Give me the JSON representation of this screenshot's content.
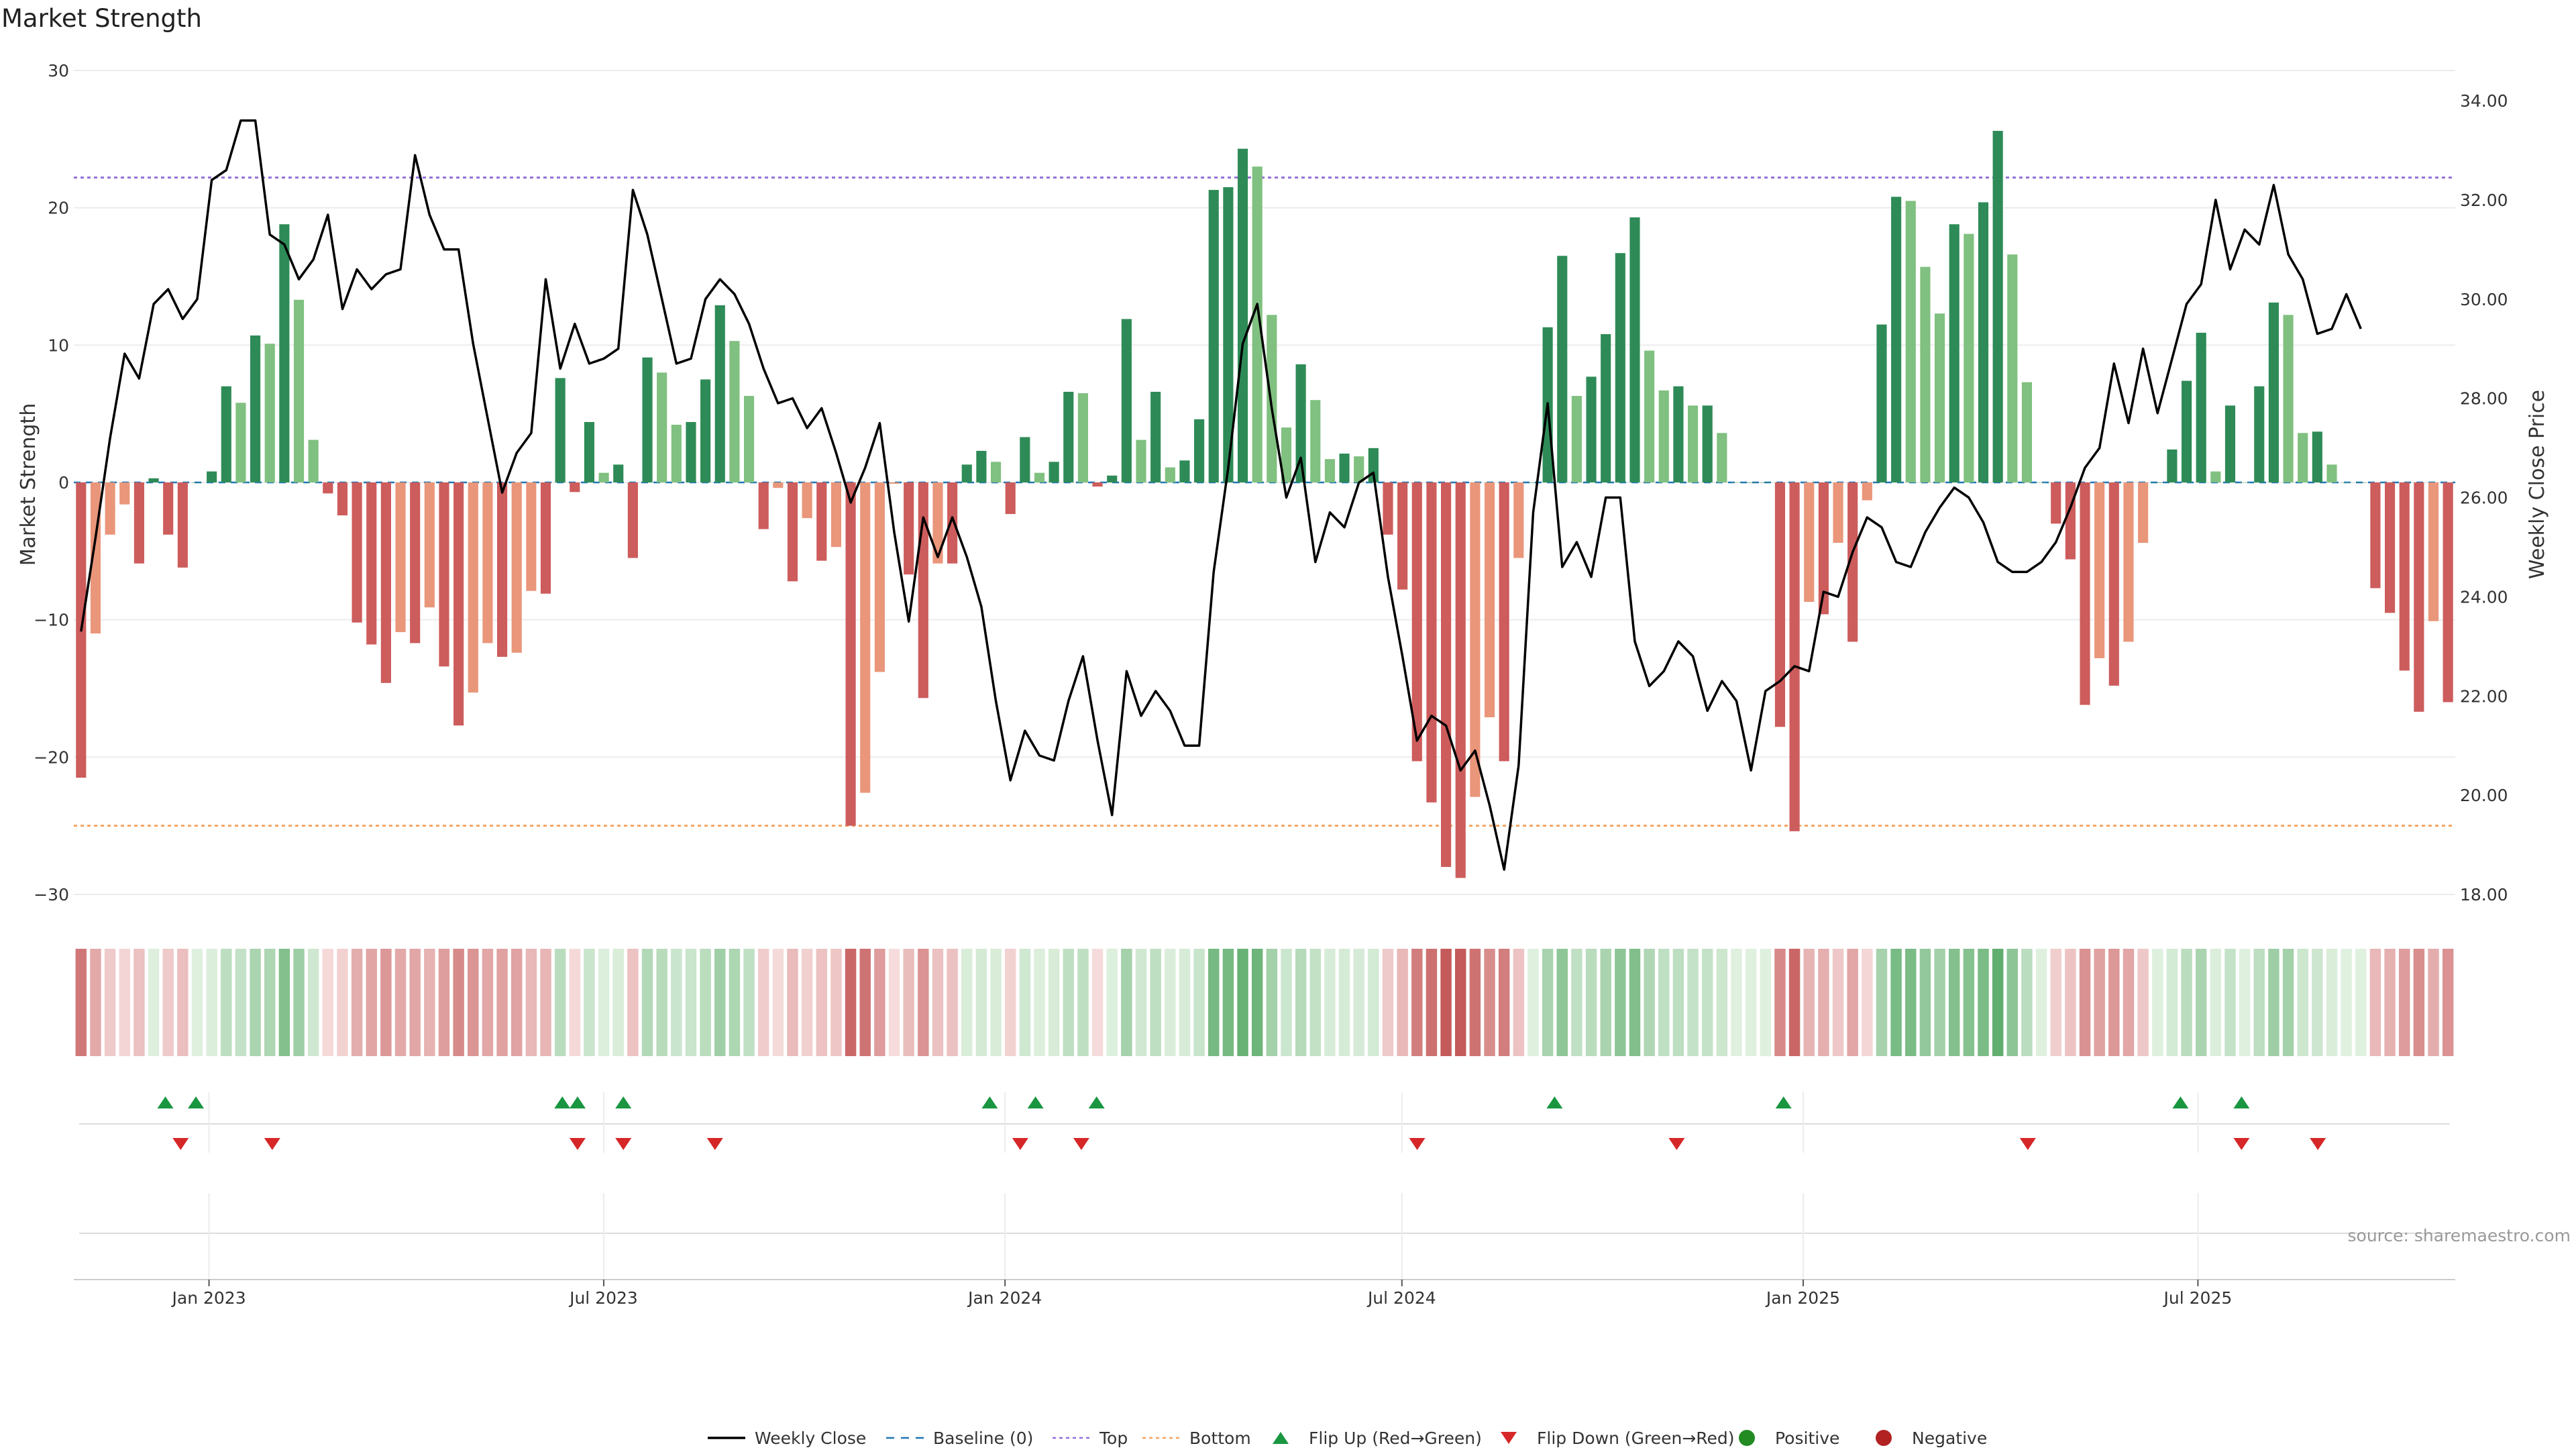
{
  "chart_data": {
    "type": "bar",
    "title": "Market Strength",
    "ylabel_left": "Market Strength",
    "ylabel_right": "Weekly Close Price",
    "source": "source: sharemaestro.com",
    "ylim_left": [
      -30,
      30
    ],
    "ylim_right": [
      18,
      34
    ],
    "yticks_left": [
      "30",
      "20",
      "10",
      "0",
      "−10",
      "−20",
      "−30"
    ],
    "yticks_right": [
      "34.00",
      "32.00",
      "30.00",
      "28.00",
      "26.00",
      "24.00",
      "22.00",
      "20.00",
      "18.00"
    ],
    "x_range": [
      "2022-10-31",
      "2025-10-27"
    ],
    "xticks": [
      {
        "label": "Jan 2023",
        "date": "2023-01-01"
      },
      {
        "label": "Jul 2023",
        "date": "2023-07-01"
      },
      {
        "label": "Jan 2024",
        "date": "2024-01-01"
      },
      {
        "label": "Jul 2024",
        "date": "2024-07-01"
      },
      {
        "label": "Jan 2025",
        "date": "2025-01-01"
      },
      {
        "label": "Jul 2025",
        "date": "2025-07-01"
      }
    ],
    "top_line": 22.2,
    "bottom_line": -25,
    "strength": [
      -21.5,
      -11,
      -3.8,
      -1.6,
      -5.9,
      0.3,
      -3.8,
      -6.2,
      0,
      0.8,
      7,
      5.8,
      10.7,
      10.1,
      18.8,
      13.3,
      3.1,
      -0.8,
      -2.4,
      -10.2,
      -11.8,
      -14.6,
      -10.9,
      -11.7,
      -9.1,
      -13.4,
      -17.7,
      -15.3,
      -11.7,
      -12.7,
      -12.4,
      -7.9,
      -8.1,
      7.6,
      -0.7,
      4.4,
      0.7,
      1.3,
      -5.5,
      9.1,
      8,
      4.2,
      4.4,
      7.5,
      12.9,
      10.3,
      6.3,
      -3.4,
      -0.4,
      -7.2,
      -2.6,
      -5.7,
      -4.7,
      -25,
      -22.6,
      -13.8,
      -0.1,
      -6.7,
      -15.7,
      -5.9,
      -5.9,
      1.3,
      2.3,
      1.5,
      -2.3,
      3.3,
      0.7,
      1.5,
      6.6,
      6.5,
      -0.3,
      0.5,
      11.9,
      3.1,
      6.6,
      1.1,
      1.6,
      4.6,
      21.3,
      21.5,
      24.3,
      23,
      12.2,
      4,
      8.6,
      6,
      1.7,
      2.1,
      1.9,
      2.5,
      -3.8,
      -7.8,
      -20.3,
      -23.3,
      -28,
      -28.8,
      -22.9,
      -17.1,
      -20.3,
      -5.5,
      0,
      11.3,
      16.5,
      6.3,
      7.7,
      10.8,
      16.7,
      19.3,
      9.6,
      6.7,
      7,
      5.6,
      5.6,
      3.6,
      0,
      0,
      0,
      -17.8,
      -25.4,
      -8.7,
      -9.6,
      -4.4,
      -11.6,
      -1.3,
      11.5,
      20.8,
      20.5,
      15.7,
      12.3,
      18.8,
      18.1,
      20.4,
      25.6,
      16.6,
      7.3,
      0,
      -3,
      -5.6,
      -16.2,
      -12.8,
      -14.8,
      -11.6,
      -4.4,
      0,
      2.4,
      7.4,
      10.9,
      0.8,
      5.6,
      0,
      7,
      13.1,
      12.2,
      3.6,
      3.7,
      1.3,
      0,
      0,
      -7.7,
      -9.5,
      -13.7,
      -16.7,
      -10.1,
      -16
    ],
    "price": [
      23.3,
      25.2,
      27.2,
      28.9,
      28.4,
      29.9,
      30.2,
      29.6,
      30,
      32.4,
      32.6,
      33.6,
      33.6,
      31.3,
      31.1,
      30.4,
      30.8,
      31.7,
      29.8,
      30.6,
      30.2,
      30.5,
      30.6,
      32.9,
      31.7,
      31,
      31,
      29.1,
      27.6,
      26.1,
      26.9,
      27.3,
      30.4,
      28.6,
      29.5,
      28.7,
      28.8,
      29,
      32.2,
      31.3,
      30,
      28.7,
      28.8,
      30,
      30.4,
      30.1,
      29.5,
      28.6,
      27.9,
      28,
      27.4,
      27.8,
      26.9,
      25.9,
      26.6,
      27.5,
      25.3,
      23.5,
      25.6,
      24.8,
      25.6,
      24.8,
      23.8,
      21.9,
      20.3,
      21.3,
      20.8,
      20.7,
      21.9,
      22.8,
      21.1,
      19.6,
      22.5,
      21.6,
      22.1,
      21.7,
      21,
      21,
      24.5,
      26.6,
      29.1,
      29.9,
      27.8,
      26,
      26.8,
      24.7,
      25.7,
      25.4,
      26.3,
      26.5,
      24.4,
      22.8,
      21.1,
      21.6,
      21.4,
      20.5,
      20.9,
      19.8,
      18.5,
      20.6,
      25.7,
      27.9,
      24.6,
      25.1,
      24.4,
      26,
      26,
      23.1,
      22.2,
      22.5,
      23.1,
      22.8,
      21.7,
      22.3,
      21.9,
      20.5,
      22.1,
      22.3,
      22.6,
      22.5,
      24.1,
      24,
      24.9,
      25.6,
      25.4,
      24.7,
      24.6,
      25.3,
      25.8,
      26.2,
      26,
      25.5,
      24.7,
      24.5,
      24.5,
      24.7,
      25.1,
      25.8,
      26.6,
      27,
      28.7,
      27.5,
      29,
      27.7,
      28.8,
      29.9,
      30.3,
      32,
      30.6,
      31.4,
      31.1,
      32.3,
      30.9,
      30.4,
      29.3,
      29.4,
      30.1,
      29.4
    ],
    "flip_up": [
      "2022-12-12",
      "2022-12-26",
      "2023-06-12",
      "2023-06-19",
      "2023-07-10",
      "2023-12-25",
      "2024-01-15",
      "2024-02-12",
      "2024-09-09",
      "2024-12-23",
      "2025-06-23",
      "2025-07-21"
    ],
    "flip_down": [
      "2022-12-19",
      "2023-01-30",
      "2023-06-19",
      "2023-07-10",
      "2023-08-21",
      "2024-01-08",
      "2024-02-05",
      "2024-07-08",
      "2024-11-04",
      "2025-04-14",
      "2025-07-21",
      "2025-08-25"
    ],
    "legend": [
      "Weekly Close",
      "Baseline (0)",
      "Top",
      "Bottom",
      "Flip Up (Red→Green)",
      "Flip Down (Green→Red)",
      "Positive",
      "Negative"
    ],
    "colors": {
      "pos_dark": "#2e8b57",
      "pos_light": "#80c080",
      "neg_dark": "#cd5c5c",
      "neg_light": "#e9967a",
      "top": "#9370db",
      "bottom": "#f4a460",
      "baseline": "#1f77b4",
      "price": "#000000",
      "flip_up": "#1a9641",
      "flip_down": "#d62728",
      "positive_dot": "#228b22",
      "negative_dot": "#b22222"
    }
  }
}
